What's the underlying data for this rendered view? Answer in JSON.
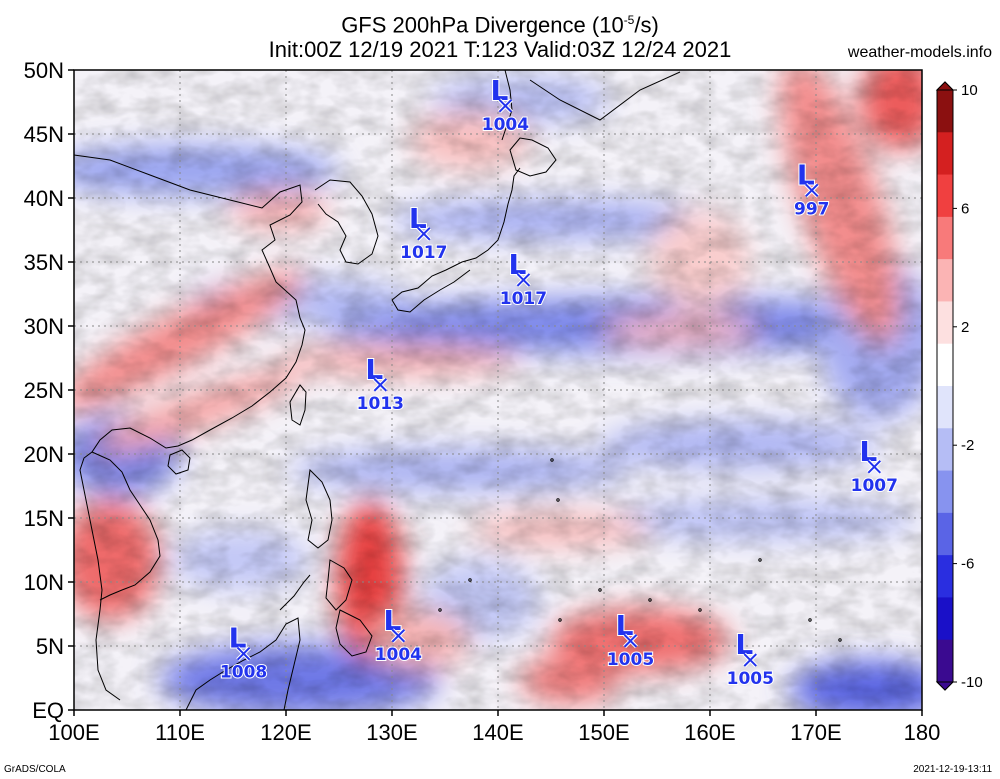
{
  "header": {
    "title_line1": "GFS 200hPa Divergence (10",
    "title_exp": "-5",
    "title_unit_tail": "/s)",
    "title_line2": "Init:00Z 12/19 2021  T:123  Valid:03Z 12/24 2021",
    "site": "weather-models.info"
  },
  "footer": {
    "left": "GrADS/COLA",
    "right": "2021-12-19-13:11"
  },
  "axes": {
    "lat_labels": [
      "50N",
      "45N",
      "40N",
      "35N",
      "30N",
      "25N",
      "20N",
      "15N",
      "10N",
      "5N",
      "EQ"
    ],
    "lat_values": [
      50,
      45,
      40,
      35,
      30,
      25,
      20,
      15,
      10,
      5,
      0
    ],
    "lon_labels": [
      "100E",
      "110E",
      "120E",
      "130E",
      "140E",
      "150E",
      "160E",
      "170E",
      "180"
    ],
    "lon_values": [
      100,
      110,
      120,
      130,
      140,
      150,
      160,
      170,
      180
    ]
  },
  "colorbar": {
    "labels": [
      "10",
      "6",
      "2",
      "-2",
      "-6",
      "-10"
    ],
    "values": [
      10,
      6,
      2,
      -2,
      -6,
      -10
    ],
    "colors": [
      "#8b1010",
      "#d42020",
      "#f04040",
      "#f87a7a",
      "#fbb4b4",
      "#fde0e0",
      "#ffffff",
      "#e0e4fb",
      "#b5bdf5",
      "#8793ef",
      "#5a64e6",
      "#2a2ee0",
      "#1a10c8",
      "#3a0a90"
    ]
  },
  "lows": [
    {
      "label": "L",
      "pressure": "1004",
      "lon": 140.7,
      "lat": 47.2
    },
    {
      "label": "L",
      "pressure": "997",
      "lon": 169.6,
      "lat": 40.6
    },
    {
      "label": "L",
      "pressure": "1017",
      "lon": 133.0,
      "lat": 37.2
    },
    {
      "label": "L",
      "pressure": "1017",
      "lon": 142.4,
      "lat": 33.6
    },
    {
      "label": "L",
      "pressure": "1013",
      "lon": 128.9,
      "lat": 25.4
    },
    {
      "label": "L",
      "pressure": "1007",
      "lon": 175.5,
      "lat": 19.0
    },
    {
      "label": "L",
      "pressure": "1008",
      "lon": 116.0,
      "lat": 4.4
    },
    {
      "label": "L",
      "pressure": "1004",
      "lon": 130.6,
      "lat": 5.8
    },
    {
      "label": "L",
      "pressure": "1005",
      "lon": 152.5,
      "lat": 5.4
    },
    {
      "label": "L",
      "pressure": "1005",
      "lon": 163.8,
      "lat": 3.9
    }
  ]
}
